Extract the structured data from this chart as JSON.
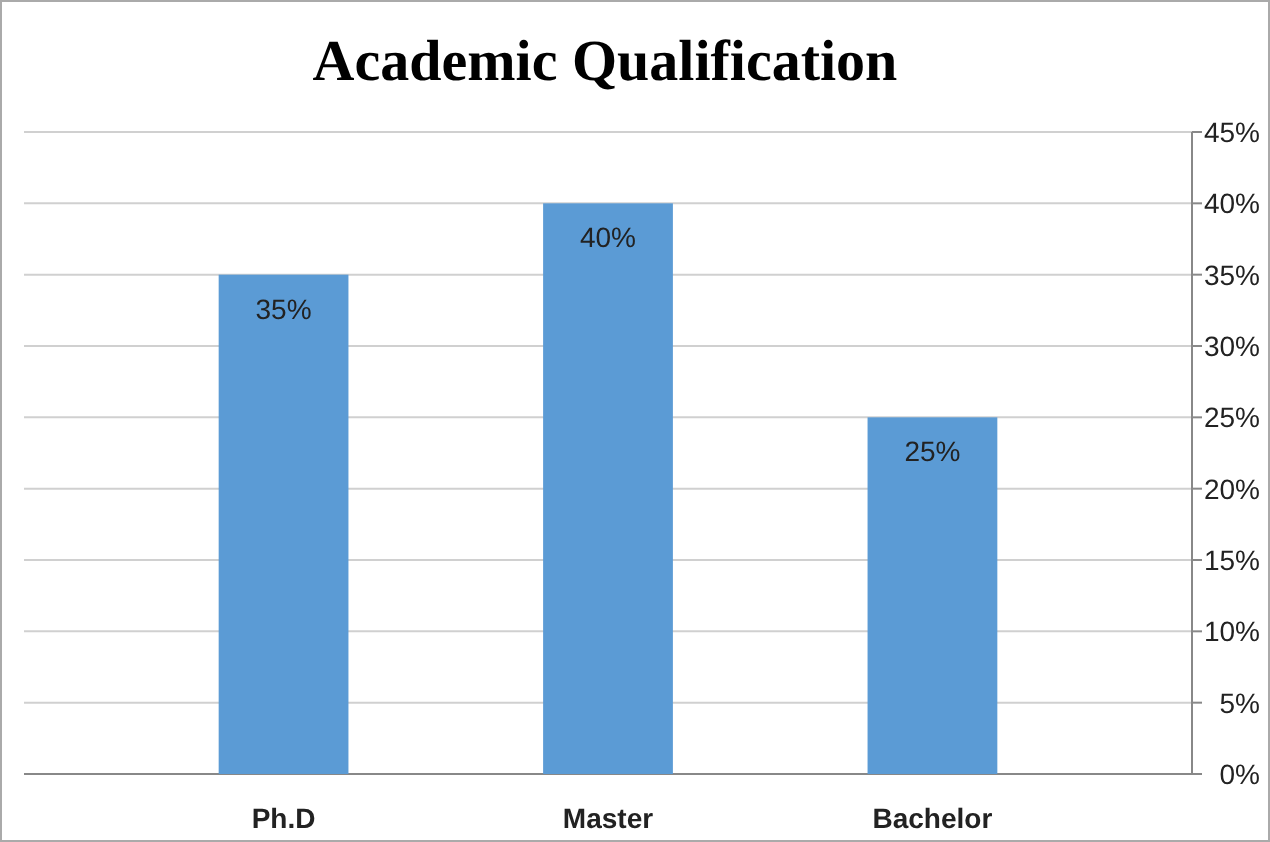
{
  "chart_data": {
    "type": "bar",
    "title": "Academic Qualification",
    "categories": [
      "Ph.D",
      "Master",
      "Bachelor"
    ],
    "values": [
      35,
      40,
      25
    ],
    "color": "#5b9bd5",
    "ylim": [
      0,
      45
    ],
    "yticks": [
      {
        "value": 0,
        "label": "0%"
      },
      {
        "value": 5,
        "label": "5%"
      },
      {
        "value": 10,
        "label": "10%"
      },
      {
        "value": 15,
        "label": "15%"
      },
      {
        "value": 20,
        "label": "20%"
      },
      {
        "value": 25,
        "label": "25%"
      },
      {
        "value": 30,
        "label": "30%"
      },
      {
        "value": 35,
        "label": "35%"
      },
      {
        "value": 40,
        "label": "40%"
      },
      {
        "value": 45,
        "label": "45%"
      }
    ],
    "value_labels": [
      "35%",
      "40%",
      "25%"
    ],
    "grid": "y"
  }
}
